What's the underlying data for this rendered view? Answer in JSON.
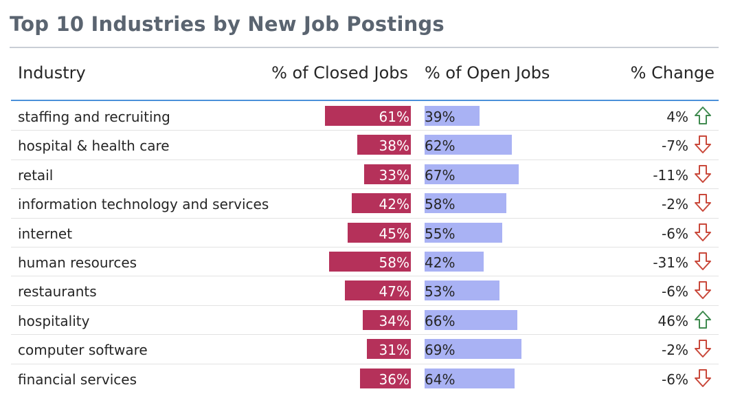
{
  "title": "Top 10 Industries by New Job Postings",
  "headers": {
    "industry": "Industry",
    "closed": "% of Closed Jobs",
    "open": "% of Open Jobs",
    "change": "% Change"
  },
  "colors": {
    "closed_bar": "#b5315a",
    "open_bar": "#a9b2f4",
    "arrow_up": "#3f8a4f",
    "arrow_down": "#c9483a",
    "header_rule": "#4a90d9"
  },
  "chart_data": {
    "type": "table",
    "title": "Top 10 Industries by New Job Postings",
    "columns": [
      "Industry",
      "% of Closed Jobs",
      "% of Open Jobs",
      "% Change"
    ],
    "rows": [
      {
        "industry": "staffing and recruiting",
        "closed": 61,
        "closed_label": "61%",
        "open": 39,
        "open_label": "39%",
        "change": 4,
        "change_label": "4%",
        "direction": "up"
      },
      {
        "industry": "hospital & health care",
        "closed": 38,
        "closed_label": "38%",
        "open": 62,
        "open_label": "62%",
        "change": -7,
        "change_label": "-7%",
        "direction": "down"
      },
      {
        "industry": "retail",
        "closed": 33,
        "closed_label": "33%",
        "open": 67,
        "open_label": "67%",
        "change": -11,
        "change_label": "-11%",
        "direction": "down"
      },
      {
        "industry": "information technology and services",
        "closed": 42,
        "closed_label": "42%",
        "open": 58,
        "open_label": "58%",
        "change": -2,
        "change_label": "-2%",
        "direction": "down"
      },
      {
        "industry": "internet",
        "closed": 45,
        "closed_label": "45%",
        "open": 55,
        "open_label": "55%",
        "change": -6,
        "change_label": "-6%",
        "direction": "down"
      },
      {
        "industry": "human resources",
        "closed": 58,
        "closed_label": "58%",
        "open": 42,
        "open_label": "42%",
        "change": -31,
        "change_label": "-31%",
        "direction": "down"
      },
      {
        "industry": "restaurants",
        "closed": 47,
        "closed_label": "47%",
        "open": 53,
        "open_label": "53%",
        "change": -6,
        "change_label": "-6%",
        "direction": "down"
      },
      {
        "industry": "hospitality",
        "closed": 34,
        "closed_label": "34%",
        "open": 66,
        "open_label": "66%",
        "change": 46,
        "change_label": "46%",
        "direction": "up"
      },
      {
        "industry": "computer software",
        "closed": 31,
        "closed_label": "31%",
        "open": 69,
        "open_label": "69%",
        "change": -2,
        "change_label": "-2%",
        "direction": "down"
      },
      {
        "industry": "financial services",
        "closed": 36,
        "closed_label": "36%",
        "open": 64,
        "open_label": "64%",
        "change": -6,
        "change_label": "-6%",
        "direction": "down"
      }
    ]
  }
}
